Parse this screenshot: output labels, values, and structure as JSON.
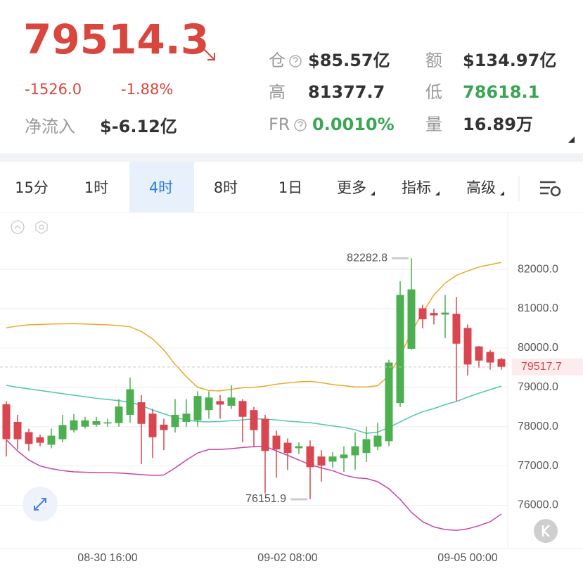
{
  "header": {
    "price": "79514.3",
    "change": "-1526.0",
    "change_pct": "-1.88%",
    "net_inflow_label": "净流入",
    "net_inflow": "$-6.12亿",
    "stats": [
      {
        "label": "仓",
        "value": "$85.57亿"
      },
      {
        "label": "额",
        "value": "$134.97亿"
      },
      {
        "label": "高",
        "value": "81377.7"
      },
      {
        "label": "低",
        "value": "78618.1"
      },
      {
        "label": "FR",
        "value": "0.0010%"
      },
      {
        "label": "量",
        "value": "16.89万"
      }
    ]
  },
  "tabs": [
    "15分",
    "1时",
    "4时",
    "8时",
    "1日",
    "更多",
    "指标",
    "高级"
  ],
  "active_tab": 2,
  "chart_data": {
    "type": "candlestick",
    "categories": [
      null,
      null,
      null,
      null,
      null,
      null,
      null,
      null,
      null,
      "08-30 16:00",
      null,
      null,
      null,
      null,
      null,
      null,
      null,
      null,
      null,
      null,
      null,
      null,
      null,
      null,
      null,
      "09-02 08:00",
      null,
      null,
      null,
      null,
      null,
      null,
      null,
      null,
      null,
      null,
      null,
      null,
      null,
      null,
      null,
      "09-05 00:00",
      null,
      null,
      null
    ],
    "open": [
      78570,
      78120,
      77860,
      77730,
      77540,
      77680,
      77910,
      78000,
      78050,
      78080,
      78090,
      78300,
      78620,
      78330,
      78050,
      77990,
      78120,
      78160,
      78420,
      78650,
      78530,
      78650,
      78420,
      78200,
      77770,
      77590,
      77450,
      77500,
      77240,
      77110,
      77200,
      77270,
      77330,
      77490,
      77630,
      78600,
      79980,
      81010,
      80890,
      80850,
      80870,
      80510,
      80040,
      79900,
      79720
    ],
    "high": [
      78650,
      78300,
      77950,
      77800,
      77950,
      78300,
      78320,
      78250,
      78250,
      78200,
      78700,
      79250,
      78800,
      78450,
      78200,
      78700,
      78700,
      78900,
      78900,
      78800,
      79050,
      78700,
      78500,
      78300,
      77900,
      77700,
      77600,
      77650,
      77400,
      77350,
      77500,
      77850,
      78000,
      78100,
      79700,
      81700,
      82282.8,
      81100,
      81000,
      81350,
      81300,
      80600,
      80050,
      79950,
      79750
    ],
    "low": [
      77240,
      77420,
      77380,
      77500,
      77450,
      77600,
      77850,
      77950,
      78000,
      78000,
      78000,
      78100,
      77050,
      77200,
      77400,
      77850,
      78000,
      78000,
      78200,
      78200,
      78450,
      77600,
      77500,
      76300,
      76700,
      76900,
      77300,
      76151.9,
      76600,
      76950,
      76850,
      76900,
      77100,
      77400,
      77500,
      78500,
      79950,
      80500,
      80600,
      80250,
      78650,
      79300,
      79500,
      79450,
      79450
    ],
    "close": [
      77680,
      77680,
      77560,
      77590,
      77770,
      78040,
      78160,
      78160,
      78140,
      78110,
      78510,
      78950,
      78070,
      77730,
      77910,
      78300,
      78330,
      78780,
      78740,
      78560,
      78740,
      78250,
      77910,
      77380,
      77420,
      77330,
      77500,
      76970,
      77010,
      77240,
      77290,
      77500,
      77680,
      77770,
      79630,
      81350,
      81490,
      80730,
      80830,
      80900,
      80110,
      79580,
      79680,
      79630,
      79517.7
    ],
    "up_color": "#4caf50",
    "down_color": "#d9464f",
    "lines": [
      {
        "color": "#e8a92a",
        "values": [
          80513,
          80560,
          80590,
          80600,
          80610,
          80615,
          80619,
          80610,
          80600,
          80590,
          80570,
          80540,
          80420,
          80230,
          79950,
          79580,
          79270,
          79000,
          78920,
          78910,
          78950,
          78990,
          79000,
          79030,
          79080,
          79110,
          79140,
          79150,
          79120,
          79070,
          79040,
          79010,
          79009,
          79040,
          79300,
          79800,
          80400,
          80900,
          81350,
          81650,
          81850,
          81960,
          82060,
          82120,
          82177
        ]
      },
      {
        "color": "#4fc7a8",
        "values": [
          79050,
          79000,
          78960,
          78920,
          78880,
          78840,
          78800,
          78760,
          78720,
          78690,
          78660,
          78620,
          78540,
          78420,
          78330,
          78230,
          78170,
          78130,
          78120,
          78130,
          78150,
          78170,
          78200,
          78190,
          78170,
          78140,
          78120,
          78100,
          78060,
          78020,
          77980,
          77920,
          77830,
          77860,
          77980,
          78120,
          78260,
          78380,
          78460,
          78560,
          78640,
          78750,
          78850,
          78940,
          79030
        ]
      },
      {
        "color": "#c843a8",
        "values": [
          77660,
          77380,
          77150,
          77000,
          76930,
          76880,
          76850,
          76840,
          76830,
          76830,
          76820,
          76800,
          76780,
          76760,
          76770,
          76950,
          77150,
          77330,
          77420,
          77420,
          77440,
          77470,
          77490,
          77500,
          77380,
          77270,
          77150,
          77030,
          76950,
          76880,
          76770,
          76700,
          76680,
          76600,
          76420,
          76150,
          75820,
          75580,
          75450,
          75380,
          75360,
          75400,
          75480,
          75580,
          75780
        ]
      }
    ],
    "ylim": [
      74900,
      83450
    ],
    "yticks": [
      {
        "value": 76000,
        "label": "76000.0"
      },
      {
        "value": 77000,
        "label": "77000.0"
      },
      {
        "value": 78000,
        "label": "78000.0"
      },
      {
        "value": 79000,
        "label": "79000.0"
      },
      {
        "value": 80000,
        "label": "80000.0"
      },
      {
        "value": 81000,
        "label": "81000.0"
      },
      {
        "value": 82000,
        "label": "82000.0"
      }
    ],
    "grid": true
  }
}
